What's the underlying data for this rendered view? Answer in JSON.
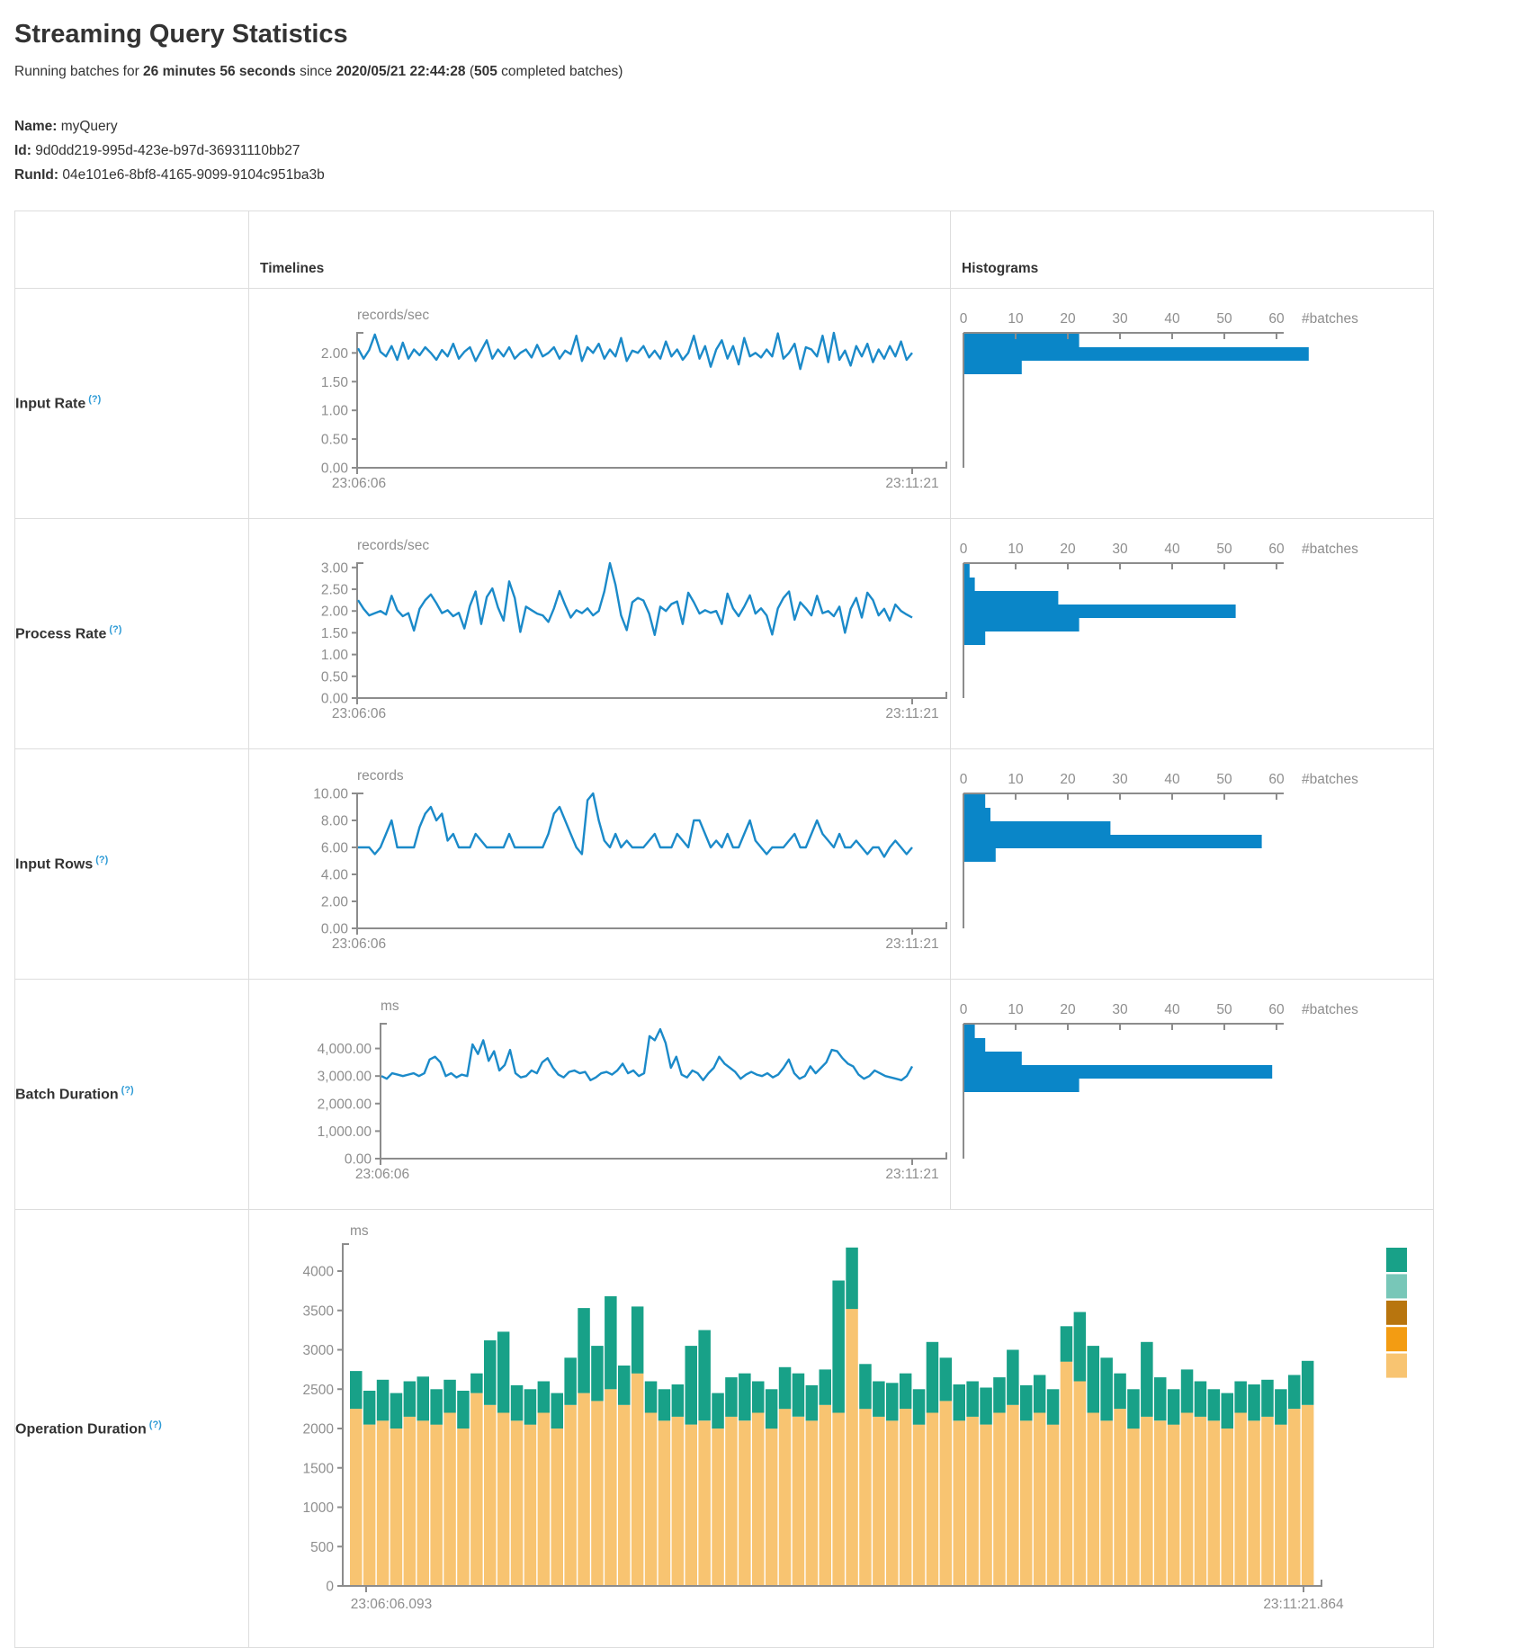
{
  "page": {
    "title": "Streaming Query Statistics",
    "subtitle": [
      {
        "text": "Running batches for ",
        "bold": false
      },
      {
        "text": "26 minutes 56 seconds",
        "bold": true
      },
      {
        "text": " since ",
        "bold": false
      },
      {
        "text": "2020/05/21 22:44:28",
        "bold": true
      },
      {
        "text": " (",
        "bold": false
      },
      {
        "text": "505",
        "bold": true
      },
      {
        "text": " completed batches)",
        "bold": false
      }
    ],
    "meta": {
      "name_label": "Name:",
      "name_value": "myQuery",
      "id_label": "Id:",
      "id_value": "9d0dd219-995d-423e-b97d-36931110bb27",
      "runid_label": "RunId:",
      "runid_value": "04e101e6-8bf8-4165-9099-9104c951ba3b"
    }
  },
  "table": {
    "timelines_header": "Timelines",
    "histograms_header": "Histograms"
  },
  "colors": {
    "line": "#1b8ac9",
    "bar": "#0a86c8",
    "axis": "#8c8c8c",
    "tick_text": "#8e8e8e",
    "help": "#2e9bd6",
    "stack": [
      "#18a188",
      "#78c7b8",
      "#b8750e",
      "#f39c12",
      "#f8c471"
    ]
  },
  "rows": [
    {
      "label": "Input Rate",
      "help": "(?)",
      "timeline": {
        "type": "line",
        "unit": "records/sec",
        "axis_x": 120,
        "ymax": 2.35,
        "yticks": [
          "2.00",
          "1.50",
          "1.00",
          "0.50",
          "0.00"
        ],
        "ytick_values": [
          2,
          1.5,
          1,
          0.5,
          0
        ],
        "x_start": "23:06:06",
        "x_end": "23:11:21",
        "values": [
          2.08,
          1.9,
          2.05,
          2.32,
          2.02,
          1.94,
          2.12,
          1.88,
          2.18,
          1.9,
          2.06,
          1.96,
          2.1,
          2.0,
          1.88,
          2.05,
          1.94,
          2.16,
          1.9,
          2.02,
          2.1,
          1.86,
          2.04,
          2.22,
          1.9,
          2.06,
          1.94,
          2.1,
          1.9,
          2.0,
          2.06,
          1.92,
          2.14,
          1.94,
          2.0,
          2.1,
          1.9,
          2.04,
          1.98,
          2.3,
          1.86,
          2.1,
          2.0,
          2.16,
          1.9,
          2.06,
          1.94,
          2.26,
          1.86,
          2.04,
          2.0,
          2.12,
          1.92,
          2.04,
          1.9,
          2.2,
          1.94,
          2.06,
          1.88,
          2.0,
          2.3,
          1.9,
          2.12,
          1.76,
          2.06,
          2.22,
          1.9,
          2.12,
          1.8,
          2.26,
          1.94,
          2.0,
          1.92,
          2.06,
          1.94,
          2.34,
          1.9,
          2.0,
          2.16,
          1.72,
          2.1,
          2.06,
          1.94,
          2.3,
          1.84,
          2.35,
          1.88,
          2.04,
          1.78,
          2.12,
          1.94,
          2.16,
          1.84,
          2.06,
          1.9,
          2.12,
          1.94,
          2.2,
          1.88,
          2.0
        ]
      },
      "histogram": {
        "type": "bar",
        "unit": "#batches",
        "ticks": [
          0,
          10,
          20,
          30,
          40,
          50,
          60
        ],
        "bins": [
          22,
          66,
          11
        ]
      }
    },
    {
      "label": "Process Rate",
      "help": "(?)",
      "timeline": {
        "type": "line",
        "unit": "records/sec",
        "axis_x": 120,
        "ymax": 3.1,
        "yticks": [
          "3.00",
          "2.50",
          "2.00",
          "1.50",
          "1.00",
          "0.50",
          "0.00"
        ],
        "ytick_values": [
          3,
          2.5,
          2,
          1.5,
          1,
          0.5,
          0
        ],
        "x_start": "23:06:06",
        "x_end": "23:11:21",
        "values": [
          2.25,
          2.05,
          1.9,
          1.95,
          2.0,
          1.92,
          2.35,
          2.02,
          1.88,
          1.95,
          1.55,
          2.05,
          2.25,
          2.38,
          2.18,
          1.95,
          2.02,
          1.88,
          1.96,
          1.6,
          2.12,
          2.45,
          1.7,
          2.32,
          2.52,
          2.08,
          1.78,
          2.68,
          2.3,
          1.52,
          2.1,
          2.02,
          1.94,
          1.9,
          1.75,
          2.06,
          2.46,
          2.14,
          1.85,
          2.02,
          1.95,
          2.06,
          1.9,
          2.0,
          2.45,
          3.1,
          2.6,
          1.9,
          1.56,
          2.2,
          2.3,
          2.24,
          1.94,
          1.45,
          2.1,
          2.0,
          2.16,
          2.22,
          1.7,
          2.42,
          2.2,
          1.94,
          2.02,
          1.96,
          2.0,
          1.7,
          2.4,
          2.06,
          1.88,
          2.1,
          2.36,
          1.94,
          2.06,
          1.9,
          1.46,
          2.06,
          2.3,
          2.45,
          1.8,
          2.2,
          2.06,
          1.9,
          2.35,
          1.95,
          2.0,
          1.88,
          2.1,
          1.5,
          2.05,
          2.3,
          1.85,
          2.42,
          2.25,
          1.9,
          2.05,
          1.78,
          2.15,
          2.0,
          1.92,
          1.85
        ]
      },
      "histogram": {
        "type": "bar",
        "unit": "#batches",
        "ticks": [
          0,
          10,
          20,
          30,
          40,
          50,
          60
        ],
        "bins": [
          1,
          2,
          18,
          52,
          22,
          4
        ]
      }
    },
    {
      "label": "Input Rows",
      "help": "(?)",
      "timeline": {
        "type": "line",
        "unit": "records",
        "axis_x": 120,
        "ymax": 10,
        "yticks": [
          "10.00",
          "8.00",
          "6.00",
          "4.00",
          "2.00",
          "0.00"
        ],
        "ytick_values": [
          10,
          8,
          6,
          4,
          2,
          0
        ],
        "x_start": "23:06:06",
        "x_end": "23:11:21",
        "values": [
          6,
          6,
          6,
          5.5,
          6,
          7,
          8,
          6,
          6,
          6,
          6,
          7.5,
          8.5,
          9,
          8,
          8.5,
          6.5,
          7,
          6,
          6,
          6,
          7,
          6.5,
          6,
          6,
          6,
          6,
          7,
          6,
          6,
          6,
          6,
          6,
          6,
          7,
          8.5,
          9,
          8,
          7,
          6,
          5.5,
          9.5,
          10,
          8,
          6.5,
          6,
          7,
          6,
          6.5,
          6,
          6,
          6,
          6.5,
          7,
          6,
          6,
          6,
          7,
          6.5,
          6,
          8,
          8,
          7,
          6,
          6.5,
          6,
          7,
          6,
          6,
          7,
          8,
          6.5,
          6,
          5.5,
          6,
          6,
          6,
          6.5,
          7,
          6,
          6,
          7,
          8,
          7,
          6.5,
          6,
          7,
          6,
          6,
          6.5,
          6,
          5.5,
          6,
          6,
          5.3,
          6,
          6.5,
          6,
          5.5,
          6
        ]
      },
      "histogram": {
        "type": "bar",
        "unit": "#batches",
        "ticks": [
          0,
          10,
          20,
          30,
          40,
          50,
          60
        ],
        "bins": [
          4,
          5,
          28,
          57,
          6
        ]
      }
    },
    {
      "label": "Batch Duration",
      "help": "(?)",
      "timeline": {
        "type": "line",
        "unit": "ms",
        "axis_x": 146,
        "ymax": 4900,
        "yticks": [
          "4,000.00",
          "3,000.00",
          "2,000.00",
          "1,000.00",
          "0.00"
        ],
        "ytick_values": [
          4000,
          3000,
          2000,
          1000,
          0
        ],
        "x_start": "23:06:06",
        "x_end": "23:11:21",
        "values": [
          3000,
          2900,
          3100,
          3050,
          3000,
          3050,
          3100,
          3000,
          3100,
          3600,
          3700,
          3500,
          3000,
          3100,
          2950,
          3050,
          3000,
          4150,
          3800,
          4300,
          3550,
          3900,
          3200,
          3400,
          3950,
          3100,
          2950,
          3000,
          3200,
          3100,
          3500,
          3650,
          3300,
          3050,
          2950,
          3150,
          3200,
          3100,
          3150,
          2850,
          2950,
          3100,
          3150,
          3050,
          3200,
          3450,
          3100,
          3200,
          3000,
          3100,
          4450,
          4300,
          4700,
          4200,
          3300,
          3700,
          3050,
          2950,
          3200,
          3100,
          2850,
          3100,
          3300,
          3700,
          3450,
          3300,
          3150,
          2900,
          3050,
          3150,
          3050,
          3000,
          3100,
          2950,
          3050,
          3300,
          3600,
          3100,
          2900,
          3000,
          3350,
          3100,
          3300,
          3500,
          3950,
          3900,
          3650,
          3450,
          3350,
          3050,
          2900,
          3000,
          3200,
          3100,
          3000,
          2950,
          2900,
          2850,
          3000,
          3350
        ]
      },
      "histogram": {
        "type": "bar",
        "unit": "#batches",
        "ticks": [
          0,
          10,
          20,
          30,
          40,
          50,
          60
        ],
        "bins": [
          2,
          4,
          11,
          59,
          22
        ]
      }
    }
  ],
  "operation": {
    "label": "Operation Duration",
    "help": "(?)",
    "type": "stacked-bar",
    "unit": "ms",
    "yticks": [
      "4000",
      "3500",
      "3000",
      "2500",
      "2000",
      "1500",
      "1000",
      "500",
      "0"
    ],
    "ytick_values": [
      4000,
      3500,
      3000,
      2500,
      2000,
      1500,
      1000,
      500,
      0
    ],
    "ymax": 4300,
    "x_start": "23:06:06.093",
    "x_end": "23:11:21.864",
    "legend_swatches": [
      "addBatch-teal",
      "lightteal",
      "brown",
      "orange",
      "tan"
    ],
    "bars": [
      [
        2250,
        2730
      ],
      [
        2050,
        2480
      ],
      [
        2100,
        2620
      ],
      [
        2000,
        2450
      ],
      [
        2150,
        2600
      ],
      [
        2100,
        2660
      ],
      [
        2050,
        2500
      ],
      [
        2200,
        2620
      ],
      [
        2000,
        2480
      ],
      [
        2450,
        2700
      ],
      [
        2300,
        3120
      ],
      [
        2200,
        3230
      ],
      [
        2100,
        2550
      ],
      [
        2050,
        2500
      ],
      [
        2200,
        2600
      ],
      [
        2000,
        2450
      ],
      [
        2300,
        2900
      ],
      [
        2450,
        3530
      ],
      [
        2350,
        3050
      ],
      [
        2500,
        3680
      ],
      [
        2300,
        2800
      ],
      [
        2700,
        3550
      ],
      [
        2200,
        2600
      ],
      [
        2100,
        2500
      ],
      [
        2150,
        2560
      ],
      [
        2050,
        3050
      ],
      [
        2100,
        3250
      ],
      [
        2000,
        2450
      ],
      [
        2150,
        2650
      ],
      [
        2100,
        2700
      ],
      [
        2200,
        2600
      ],
      [
        2000,
        2500
      ],
      [
        2250,
        2780
      ],
      [
        2150,
        2700
      ],
      [
        2100,
        2550
      ],
      [
        2300,
        2750
      ],
      [
        2200,
        3880
      ],
      [
        3520,
        4300
      ],
      [
        2250,
        2820
      ],
      [
        2150,
        2600
      ],
      [
        2100,
        2580
      ],
      [
        2250,
        2700
      ],
      [
        2050,
        2500
      ],
      [
        2200,
        3100
      ],
      [
        2350,
        2900
      ],
      [
        2100,
        2560
      ],
      [
        2150,
        2600
      ],
      [
        2050,
        2520
      ],
      [
        2200,
        2650
      ],
      [
        2300,
        3000
      ],
      [
        2100,
        2550
      ],
      [
        2200,
        2680
      ],
      [
        2050,
        2500
      ],
      [
        2850,
        3300
      ],
      [
        2600,
        3480
      ],
      [
        2200,
        3050
      ],
      [
        2100,
        2900
      ],
      [
        2250,
        2700
      ],
      [
        2000,
        2500
      ],
      [
        2150,
        3100
      ],
      [
        2100,
        2650
      ],
      [
        2050,
        2500
      ],
      [
        2200,
        2750
      ],
      [
        2150,
        2600
      ],
      [
        2100,
        2500
      ],
      [
        2000,
        2450
      ],
      [
        2200,
        2600
      ],
      [
        2100,
        2560
      ],
      [
        2150,
        2620
      ],
      [
        2050,
        2500
      ],
      [
        2250,
        2680
      ],
      [
        2300,
        2860
      ]
    ]
  }
}
